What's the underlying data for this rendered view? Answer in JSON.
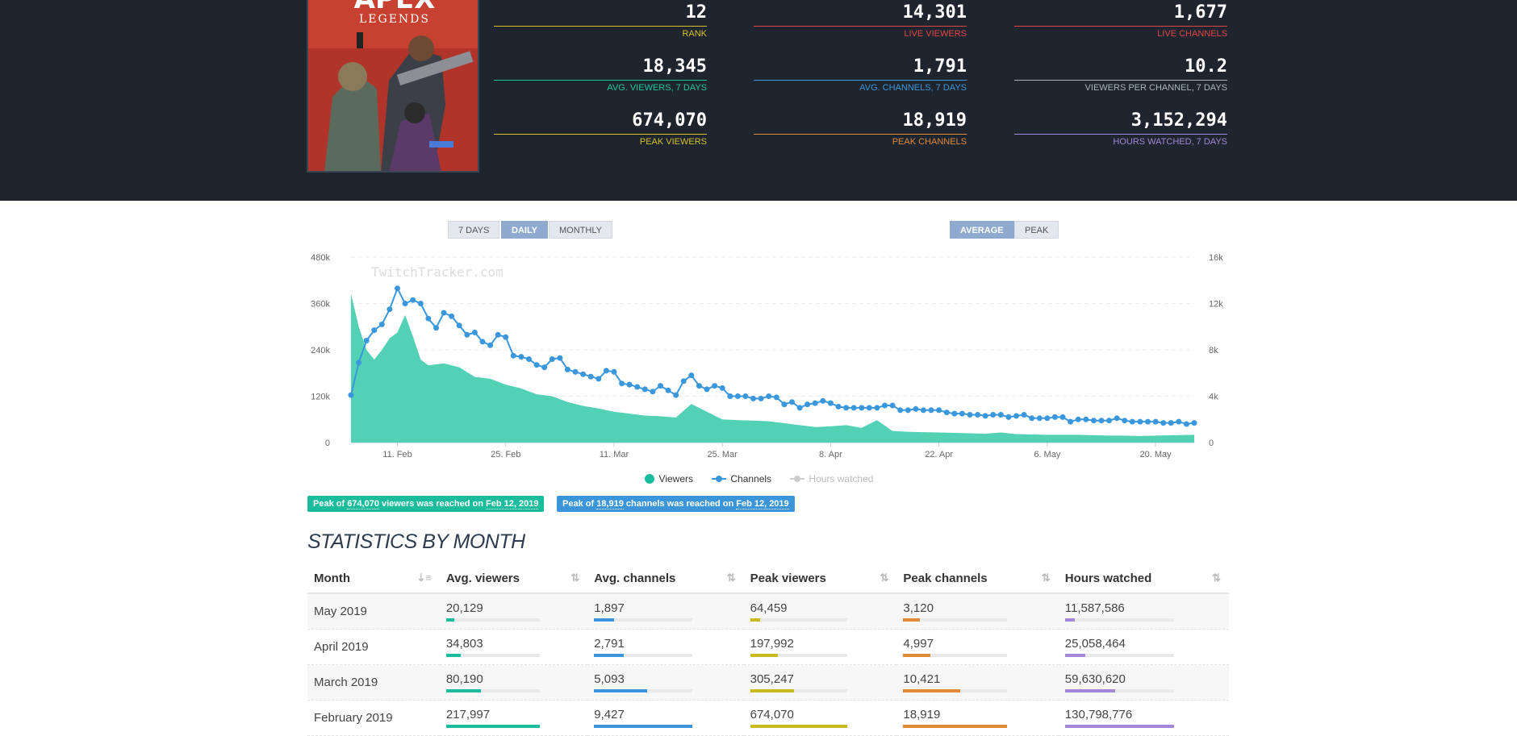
{
  "header": {
    "cover": {
      "title_text": "APEX",
      "subtitle_text": "LEGENDS"
    },
    "stats": [
      {
        "value": "12",
        "label": "RANK",
        "color": "#d7c028"
      },
      {
        "value": "14,301",
        "label": "LIVE VIEWERS",
        "color": "#e04646"
      },
      {
        "value": "1,677",
        "label": "LIVE CHANNELS",
        "color": "#e04646"
      },
      {
        "value": "18,345",
        "label": "AVG. VIEWERS, 7 DAYS",
        "color": "#20c59e"
      },
      {
        "value": "1,791",
        "label": "AVG. CHANNELS, 7 DAYS",
        "color": "#3d96d8"
      },
      {
        "value": "10.2",
        "label": "VIEWERS PER CHANNEL, 7 DAYS",
        "color": "#aab2bd"
      },
      {
        "value": "674,070",
        "label": "PEAK VIEWERS",
        "color": "#d7c028"
      },
      {
        "value": "18,919",
        "label": "PEAK CHANNELS",
        "color": "#e08a3a"
      },
      {
        "value": "3,152,294",
        "label": "HOURS WATCHED, 7 DAYS",
        "color": "#9d8ad8"
      }
    ]
  },
  "range_buttons": [
    {
      "label": "7 DAYS",
      "active": false
    },
    {
      "label": "DAILY",
      "active": true
    },
    {
      "label": "MONTHLY",
      "active": false
    }
  ],
  "mode_buttons": [
    {
      "label": "AVERAGE",
      "active": true
    },
    {
      "label": "PEAK",
      "active": false
    }
  ],
  "chart_data": {
    "type": "area",
    "watermark": "TwitchTracker.com",
    "x_tick_labels": [
      "11. Feb",
      "25. Feb",
      "11. Mar",
      "25. Mar",
      "8. Apr",
      "22. Apr",
      "6. May",
      "20. May"
    ],
    "y_left_ticks": [
      "0",
      "120k",
      "240k",
      "360k",
      "480k"
    ],
    "y_right_ticks": [
      "0",
      "4k",
      "8k",
      "12k",
      "16k"
    ],
    "ylim_left": [
      0,
      480000
    ],
    "ylim_right": [
      0,
      16000
    ],
    "x_range": [
      "2019-02-05",
      "2019-05-25"
    ],
    "series": [
      {
        "name": "Viewers",
        "axis": "left",
        "color": "#52d1b4",
        "x": [
          "2019-02-05",
          "2019-02-06",
          "2019-02-07",
          "2019-02-08",
          "2019-02-09",
          "2019-02-10",
          "2019-02-11",
          "2019-02-12",
          "2019-02-13",
          "2019-02-14",
          "2019-02-15",
          "2019-02-17",
          "2019-02-19",
          "2019-02-21",
          "2019-02-23",
          "2019-02-25",
          "2019-02-27",
          "2019-03-01",
          "2019-03-03",
          "2019-03-05",
          "2019-03-07",
          "2019-03-09",
          "2019-03-11",
          "2019-03-13",
          "2019-03-15",
          "2019-03-17",
          "2019-03-19",
          "2019-03-21",
          "2019-03-23",
          "2019-03-25",
          "2019-03-27",
          "2019-03-29",
          "2019-03-31",
          "2019-04-02",
          "2019-04-04",
          "2019-04-06",
          "2019-04-08",
          "2019-04-10",
          "2019-04-12",
          "2019-04-14",
          "2019-04-16",
          "2019-04-18",
          "2019-04-20",
          "2019-04-22",
          "2019-04-24",
          "2019-04-26",
          "2019-04-28",
          "2019-04-30",
          "2019-05-02",
          "2019-05-04",
          "2019-05-06",
          "2019-05-08",
          "2019-05-10",
          "2019-05-12",
          "2019-05-14",
          "2019-05-16",
          "2019-05-18",
          "2019-05-20",
          "2019-05-22",
          "2019-05-25"
        ],
        "values": [
          385000,
          300000,
          240000,
          215000,
          240000,
          270000,
          285000,
          330000,
          275000,
          215000,
          200000,
          205000,
          195000,
          170000,
          165000,
          150000,
          140000,
          125000,
          120000,
          105000,
          95000,
          88000,
          80000,
          75000,
          70000,
          68000,
          65000,
          100000,
          80000,
          60000,
          58000,
          57000,
          55000,
          50000,
          45000,
          40000,
          42000,
          45000,
          38000,
          58000,
          30000,
          28000,
          27000,
          26000,
          25000,
          24000,
          23000,
          26000,
          22000,
          21000,
          20000,
          20000,
          20000,
          19000,
          18000,
          18000,
          17000,
          18000,
          19000,
          20000
        ]
      },
      {
        "name": "Channels",
        "axis": "right",
        "color": "#3b97dc",
        "x": [
          "2019-02-05",
          "2019-02-06",
          "2019-02-07",
          "2019-02-08",
          "2019-02-09",
          "2019-02-10",
          "2019-02-11",
          "2019-02-12",
          "2019-02-13",
          "2019-02-14",
          "2019-02-15",
          "2019-02-16",
          "2019-02-17",
          "2019-02-18",
          "2019-02-19",
          "2019-02-20",
          "2019-02-21",
          "2019-02-22",
          "2019-02-23",
          "2019-02-24",
          "2019-02-25",
          "2019-02-26",
          "2019-02-27",
          "2019-02-28",
          "2019-03-01",
          "2019-03-02",
          "2019-03-03",
          "2019-03-04",
          "2019-03-05",
          "2019-03-06",
          "2019-03-07",
          "2019-03-08",
          "2019-03-09",
          "2019-03-10",
          "2019-03-11",
          "2019-03-12",
          "2019-03-13",
          "2019-03-14",
          "2019-03-15",
          "2019-03-16",
          "2019-03-17",
          "2019-03-18",
          "2019-03-19",
          "2019-03-20",
          "2019-03-21",
          "2019-03-22",
          "2019-03-23",
          "2019-03-24",
          "2019-03-25",
          "2019-03-26",
          "2019-03-27",
          "2019-03-28",
          "2019-03-29",
          "2019-03-30",
          "2019-03-31",
          "2019-04-01",
          "2019-04-02",
          "2019-04-03",
          "2019-04-04",
          "2019-04-05",
          "2019-04-06",
          "2019-04-07",
          "2019-04-08",
          "2019-04-09",
          "2019-04-10",
          "2019-04-11",
          "2019-04-12",
          "2019-04-13",
          "2019-04-14",
          "2019-04-15",
          "2019-04-16",
          "2019-04-17",
          "2019-04-18",
          "2019-04-19",
          "2019-04-20",
          "2019-04-21",
          "2019-04-22",
          "2019-04-23",
          "2019-04-24",
          "2019-04-25",
          "2019-04-26",
          "2019-04-27",
          "2019-04-28",
          "2019-04-29",
          "2019-04-30",
          "2019-05-01",
          "2019-05-02",
          "2019-05-03",
          "2019-05-04",
          "2019-05-05",
          "2019-05-06",
          "2019-05-07",
          "2019-05-08",
          "2019-05-09",
          "2019-05-10",
          "2019-05-11",
          "2019-05-12",
          "2019-05-13",
          "2019-05-14",
          "2019-05-15",
          "2019-05-16",
          "2019-05-17",
          "2019-05-18",
          "2019-05-19",
          "2019-05-20",
          "2019-05-21",
          "2019-05-22",
          "2019-05-23",
          "2019-05-24",
          "2019-05-25"
        ],
        "values": [
          4100,
          6900,
          8800,
          9700,
          10200,
          11500,
          13300,
          12000,
          12300,
          12000,
          10700,
          9900,
          11200,
          10900,
          10100,
          9300,
          9500,
          8700,
          8400,
          9300,
          9100,
          7500,
          7400,
          7200,
          6700,
          6500,
          7200,
          7300,
          6300,
          6100,
          5900,
          5700,
          5500,
          6200,
          6100,
          5100,
          5000,
          4800,
          4600,
          4400,
          4900,
          4500,
          4100,
          5300,
          5800,
          4900,
          4600,
          4900,
          4700,
          4000,
          4000,
          4000,
          3800,
          3800,
          4000,
          3900,
          3300,
          3500,
          3000,
          3300,
          3400,
          3600,
          3400,
          3100,
          3000,
          3000,
          3000,
          3000,
          3000,
          3200,
          3200,
          2800,
          2800,
          2900,
          2800,
          2800,
          2800,
          2600,
          2500,
          2500,
          2400,
          2400,
          2300,
          2400,
          2400,
          2200,
          2300,
          2400,
          2100,
          2100,
          2100,
          2200,
          2200,
          1800,
          2000,
          2000,
          1900,
          1900,
          1900,
          2100,
          1900,
          1800,
          1800,
          1800,
          1800,
          1700,
          1700,
          1800,
          1600,
          1700
        ]
      },
      {
        "name": "Hours watched",
        "axis": "left",
        "color": "#cccccc",
        "hidden": true
      }
    ],
    "legend": {
      "position": "bottom"
    }
  },
  "peaks": {
    "viewers": {
      "prefix": "Peak of ",
      "value": "674,070",
      "middle": " viewers was reached on ",
      "date": "Feb 12, 2019",
      "color": "#1abc9c"
    },
    "channels": {
      "prefix": "Peak of ",
      "value": "18,919",
      "middle": " channels was reached on ",
      "date": "Feb 12, 2019",
      "color": "#3a95db"
    }
  },
  "section_title": "STATISTICS BY MONTH",
  "table": {
    "columns": [
      {
        "label": "Month",
        "color": null
      },
      {
        "label": "Avg. viewers",
        "color": "#1abc9c"
      },
      {
        "label": "Avg. channels",
        "color": "#3a95db"
      },
      {
        "label": "Peak viewers",
        "color": "#c9bb1d"
      },
      {
        "label": "Peak channels",
        "color": "#e08a3a"
      },
      {
        "label": "Hours watched",
        "color": "#a487d8"
      }
    ],
    "rows": [
      {
        "month": "May 2019",
        "cells": [
          {
            "v": "20,129",
            "p": 0.09
          },
          {
            "v": "1,897",
            "p": 0.2
          },
          {
            "v": "64,459",
            "p": 0.1
          },
          {
            "v": "3,120",
            "p": 0.16
          },
          {
            "v": "11,587,586",
            "p": 0.09
          }
        ]
      },
      {
        "month": "April 2019",
        "cells": [
          {
            "v": "34,803",
            "p": 0.16
          },
          {
            "v": "2,791",
            "p": 0.3
          },
          {
            "v": "197,992",
            "p": 0.29
          },
          {
            "v": "4,997",
            "p": 0.26
          },
          {
            "v": "25,058,464",
            "p": 0.19
          }
        ]
      },
      {
        "month": "March 2019",
        "cells": [
          {
            "v": "80,190",
            "p": 0.37
          },
          {
            "v": "5,093",
            "p": 0.54
          },
          {
            "v": "305,247",
            "p": 0.45
          },
          {
            "v": "10,421",
            "p": 0.55
          },
          {
            "v": "59,630,620",
            "p": 0.46
          }
        ]
      },
      {
        "month": "February 2019",
        "cells": [
          {
            "v": "217,997",
            "p": 1.0
          },
          {
            "v": "9,427",
            "p": 1.0
          },
          {
            "v": "674,070",
            "p": 1.0
          },
          {
            "v": "18,919",
            "p": 1.0
          },
          {
            "v": "130,798,776",
            "p": 1.0
          }
        ]
      }
    ]
  }
}
